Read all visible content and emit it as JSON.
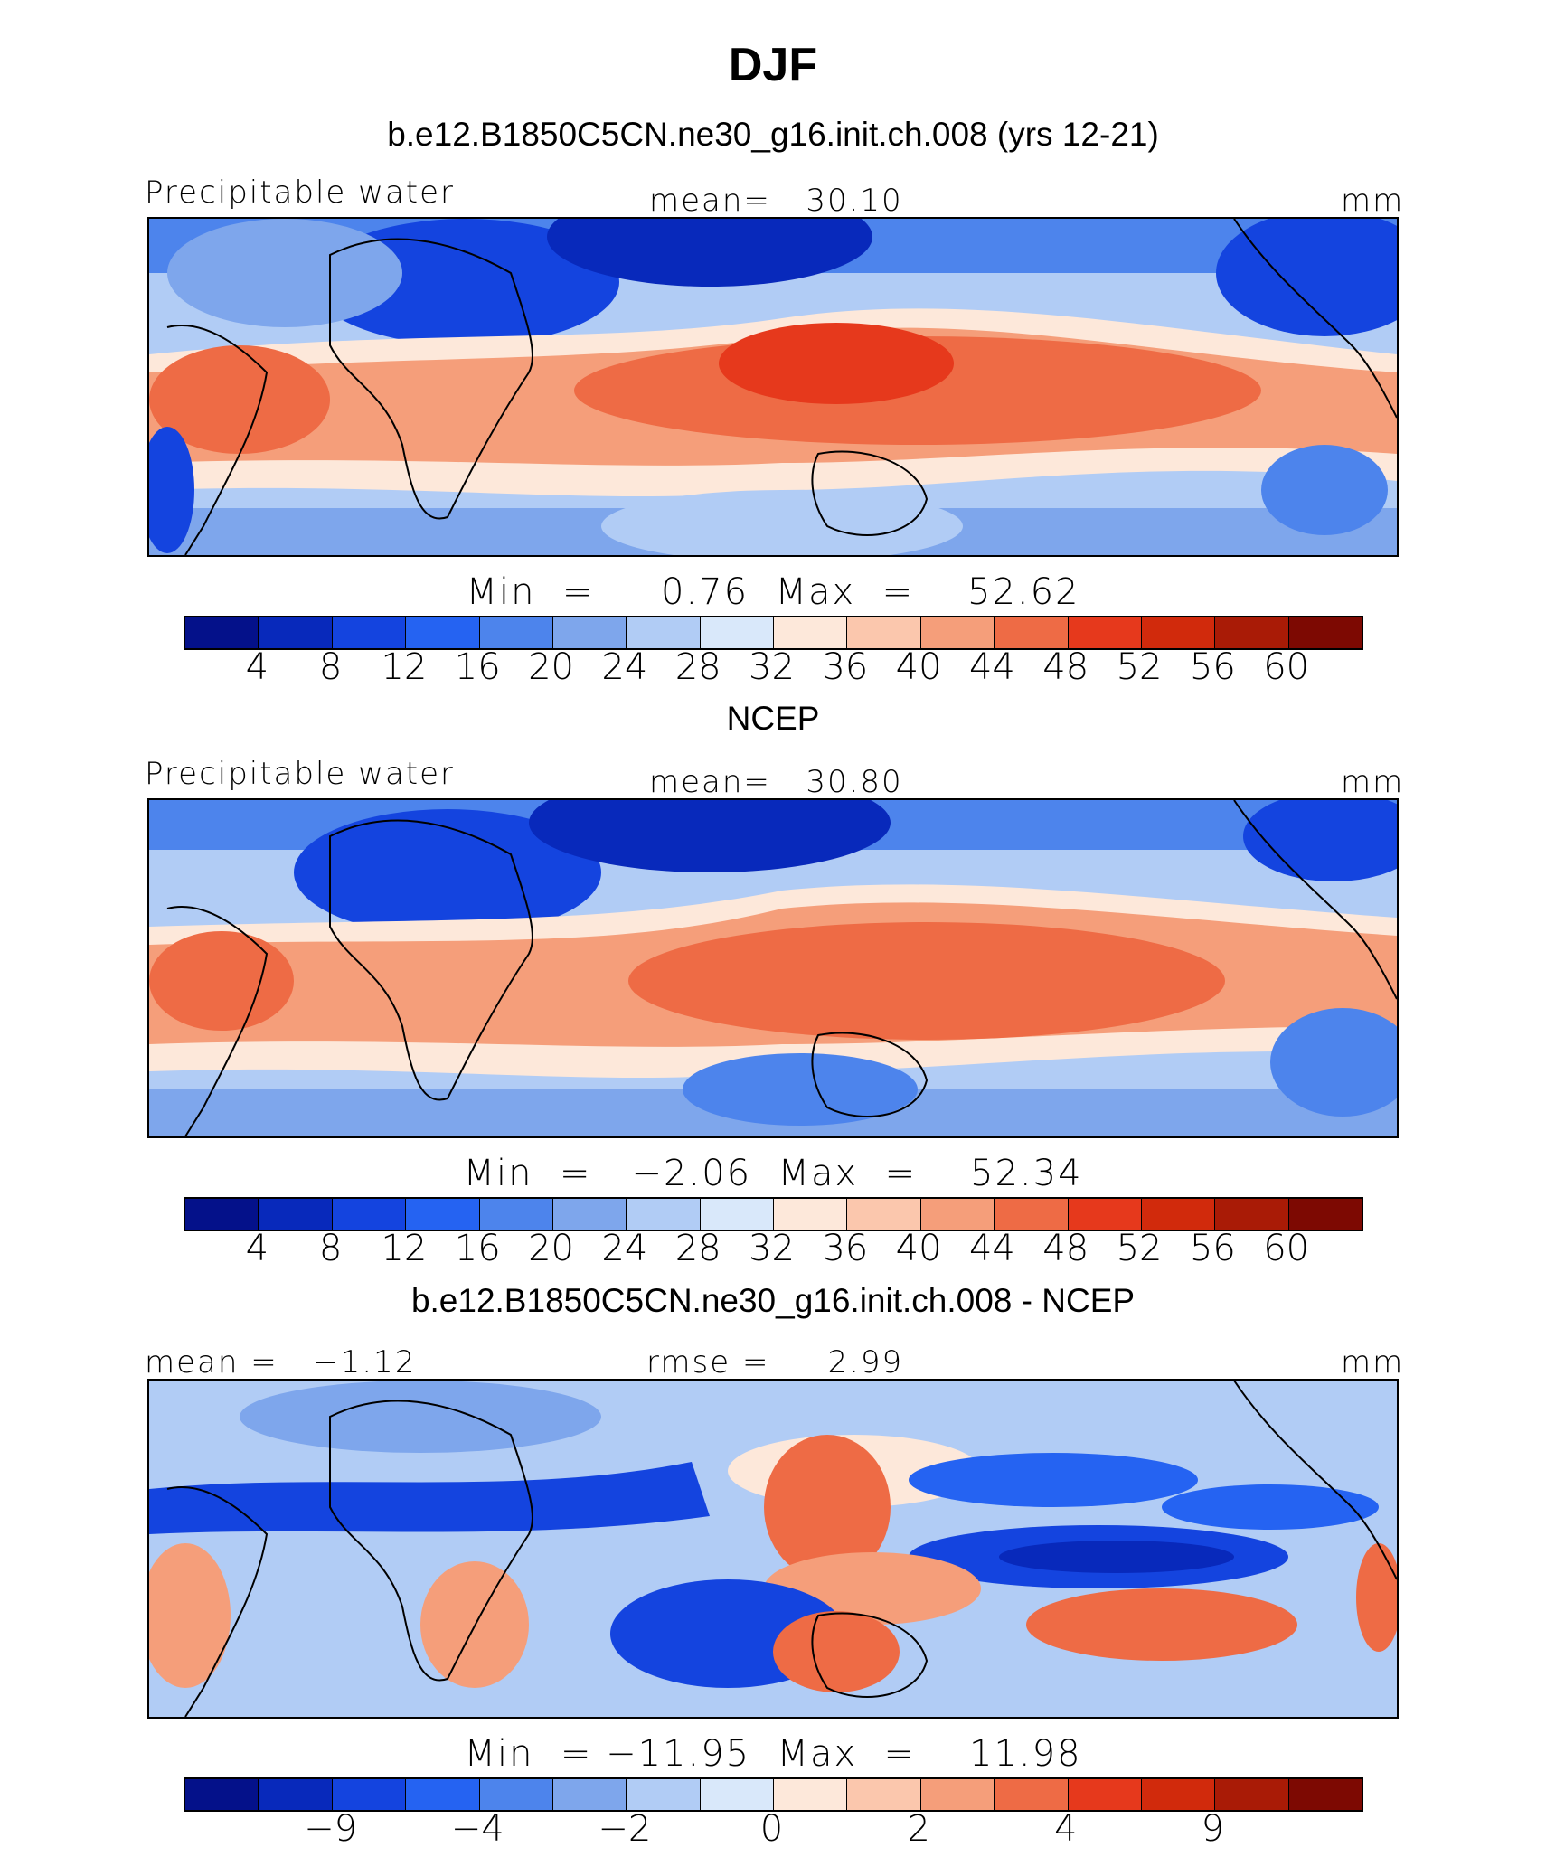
{
  "title": "DJF",
  "colors": [
    "#04118a",
    "#0829bb",
    "#1444df",
    "#2563f2",
    "#4d84ec",
    "#7ea6ec",
    "#b1ccf5",
    "#d9e8fa",
    "#fde8da",
    "#fbc7ad",
    "#f59e7a",
    "#ee6b45",
    "#e6391c",
    "#d12a0c",
    "#a91b06",
    "#7d0902"
  ],
  "panels": [
    {
      "title": "b.e12.B1850C5CN.ne30_g16.init.ch.008 (yrs 12-21)",
      "left_label": "Precipitable water",
      "center_label": "mean=   30.10",
      "units": "mm",
      "minmax": "Min  =     0.76  Max  =    52.62",
      "ticks": [
        "4",
        "8",
        "12",
        "16",
        "20",
        "24",
        "28",
        "32",
        "36",
        "40",
        "44",
        "48",
        "52",
        "56",
        "60"
      ]
    },
    {
      "title": "NCEP",
      "left_label": "Precipitable water",
      "center_label": "mean=   30.80",
      "units": "mm",
      "minmax": "Min  =   −2.06  Max  =    52.34",
      "ticks": [
        "4",
        "8",
        "12",
        "16",
        "20",
        "24",
        "28",
        "32",
        "36",
        "40",
        "44",
        "48",
        "52",
        "56",
        "60"
      ]
    },
    {
      "title": "b.e12.B1850C5CN.ne30_g16.init.ch.008 - NCEP",
      "left_label": "mean =   −1.12",
      "center_label": "rmse =     2.99",
      "units": "mm",
      "minmax": "Min  = −11.95  Max  =    11.98",
      "ticks": [
        "−9",
        "−4",
        "−2",
        "0",
        "2",
        "4",
        "9"
      ]
    }
  ]
}
